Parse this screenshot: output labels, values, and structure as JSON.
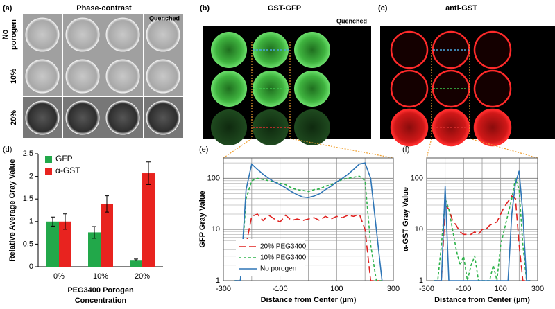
{
  "images": {
    "a": {
      "label": "(a)",
      "title": "Phase-contrast",
      "quenched": "Quenched",
      "rows": [
        [
          "No",
          "porogen"
        ],
        [
          "10%"
        ],
        [
          "20%"
        ]
      ]
    },
    "b": {
      "label": "(b)",
      "title": "GST-GFP",
      "quenched": "Quenched"
    },
    "c": {
      "label": "(c)",
      "title": "anti-GST"
    }
  },
  "chart_data": [
    {
      "type": "bar",
      "panel_label": "(d)",
      "ylabel": "Relative Average Gray Value",
      "xlabel": [
        "PEG3400 Porogen",
        "Concentration"
      ],
      "categories": [
        "0%",
        "10%",
        "20%"
      ],
      "series": [
        {
          "name": "GFP",
          "color": "#22a84a",
          "values": [
            1,
            0.76,
            0.15
          ],
          "errors": [
            0.1,
            0.13,
            0.02
          ]
        },
        {
          "name": "α-GST",
          "color": "#e8231f",
          "values": [
            1,
            1.39,
            2.07
          ],
          "errors": [
            0.17,
            0.18,
            0.25
          ]
        }
      ],
      "ylim": [
        0,
        2.5
      ],
      "yticks": [
        0,
        0.5,
        1,
        1.5,
        2,
        2.5
      ],
      "legend": "upper left"
    },
    {
      "type": "line",
      "panel_label": "(e)",
      "ylabel": "GFP Gray Value",
      "xlabel": "Distance from Center (µm)",
      "log_y": true,
      "grid": true,
      "legend": "lower left",
      "x": [
        -260,
        -240,
        -220,
        -200,
        -180,
        -160,
        -140,
        -120,
        -100,
        -80,
        -60,
        -40,
        -20,
        0,
        20,
        40,
        60,
        80,
        100,
        120,
        140,
        160,
        180,
        200,
        220,
        240,
        260
      ],
      "series": [
        {
          "name": "20% PEG3400",
          "color": "#e0201e",
          "linestyle": "dashed",
          "values": [
            1,
            1,
            5,
            18,
            20,
            15,
            19,
            16,
            14,
            19,
            15,
            16,
            15,
            16,
            17,
            15,
            18,
            16,
            18,
            17,
            19,
            18,
            20,
            10,
            1,
            1,
            1
          ]
        },
        {
          "name": "10% PEG3400",
          "color": "#2db34a",
          "linestyle": "dotted",
          "values": [
            1,
            1,
            40,
            90,
            100,
            95,
            90,
            85,
            80,
            75,
            65,
            60,
            58,
            55,
            60,
            62,
            70,
            75,
            85,
            95,
            100,
            105,
            110,
            90,
            5,
            1,
            1
          ]
        },
        {
          "name": "No porogen",
          "color": "#2e75b6",
          "linestyle": "solid",
          "values": [
            1,
            1,
            60,
            190,
            150,
            120,
            100,
            85,
            75,
            65,
            55,
            48,
            43,
            42,
            45,
            50,
            60,
            70,
            85,
            100,
            120,
            150,
            190,
            200,
            100,
            10,
            1
          ]
        }
      ],
      "xlim": [
        -300,
        300
      ],
      "xticks": [
        -300,
        -100,
        100,
        300
      ],
      "xminorticks": [
        -200,
        0,
        200
      ],
      "ylim": [
        1,
        250
      ],
      "yticks": [
        1,
        10,
        100
      ],
      "yminorticks": [
        2,
        3,
        4,
        5,
        6,
        7,
        8,
        9,
        20,
        30,
        40,
        50,
        60,
        70,
        80,
        90,
        200
      ]
    },
    {
      "type": "line",
      "panel_label": "(f)",
      "ylabel": "α-GST Gray Value",
      "xlabel": "Distance from Center (µm)",
      "log_y": true,
      "grid": true,
      "x": [
        -260,
        -240,
        -220,
        -200,
        -180,
        -160,
        -140,
        -120,
        -100,
        -80,
        -60,
        -40,
        -20,
        0,
        20,
        40,
        60,
        80,
        100,
        120,
        140,
        160,
        180,
        200,
        220,
        240,
        260
      ],
      "series": [
        {
          "name": "20% PEG3400",
          "color": "#e0201e",
          "linestyle": "dashed",
          "values": [
            1,
            1,
            1,
            30,
            25,
            15,
            12,
            9,
            8,
            8,
            8,
            9,
            8,
            10,
            10,
            12,
            13,
            14,
            20,
            28,
            35,
            45,
            40,
            5,
            1,
            1,
            1
          ]
        },
        {
          "name": "10% PEG3400",
          "color": "#2db34a",
          "linestyle": "dotted",
          "values": [
            1,
            1,
            5,
            40,
            25,
            10,
            4,
            2,
            3,
            1,
            2,
            3,
            1,
            1,
            1,
            1,
            2,
            1,
            5,
            10,
            20,
            40,
            100,
            60,
            5,
            1,
            1
          ]
        },
        {
          "name": "No porogen",
          "color": "#2e75b6",
          "linestyle": "solid",
          "values": [
            1,
            1,
            1,
            70,
            1,
            1,
            1,
            1,
            1,
            1,
            1,
            1,
            1,
            1,
            1,
            1,
            1,
            1,
            1,
            1,
            1,
            20,
            80,
            140,
            20,
            1,
            1
          ]
        }
      ],
      "xlim": [
        -300,
        300
      ],
      "xticks": [
        -300,
        -100,
        100,
        300
      ],
      "xminorticks": [
        -200,
        0,
        200
      ],
      "ylim": [
        1,
        250
      ],
      "yticks": [
        1,
        10,
        100
      ],
      "yminorticks": [
        2,
        3,
        4,
        5,
        6,
        7,
        8,
        9,
        20,
        30,
        40,
        50,
        60,
        70,
        80,
        90,
        200
      ]
    }
  ]
}
